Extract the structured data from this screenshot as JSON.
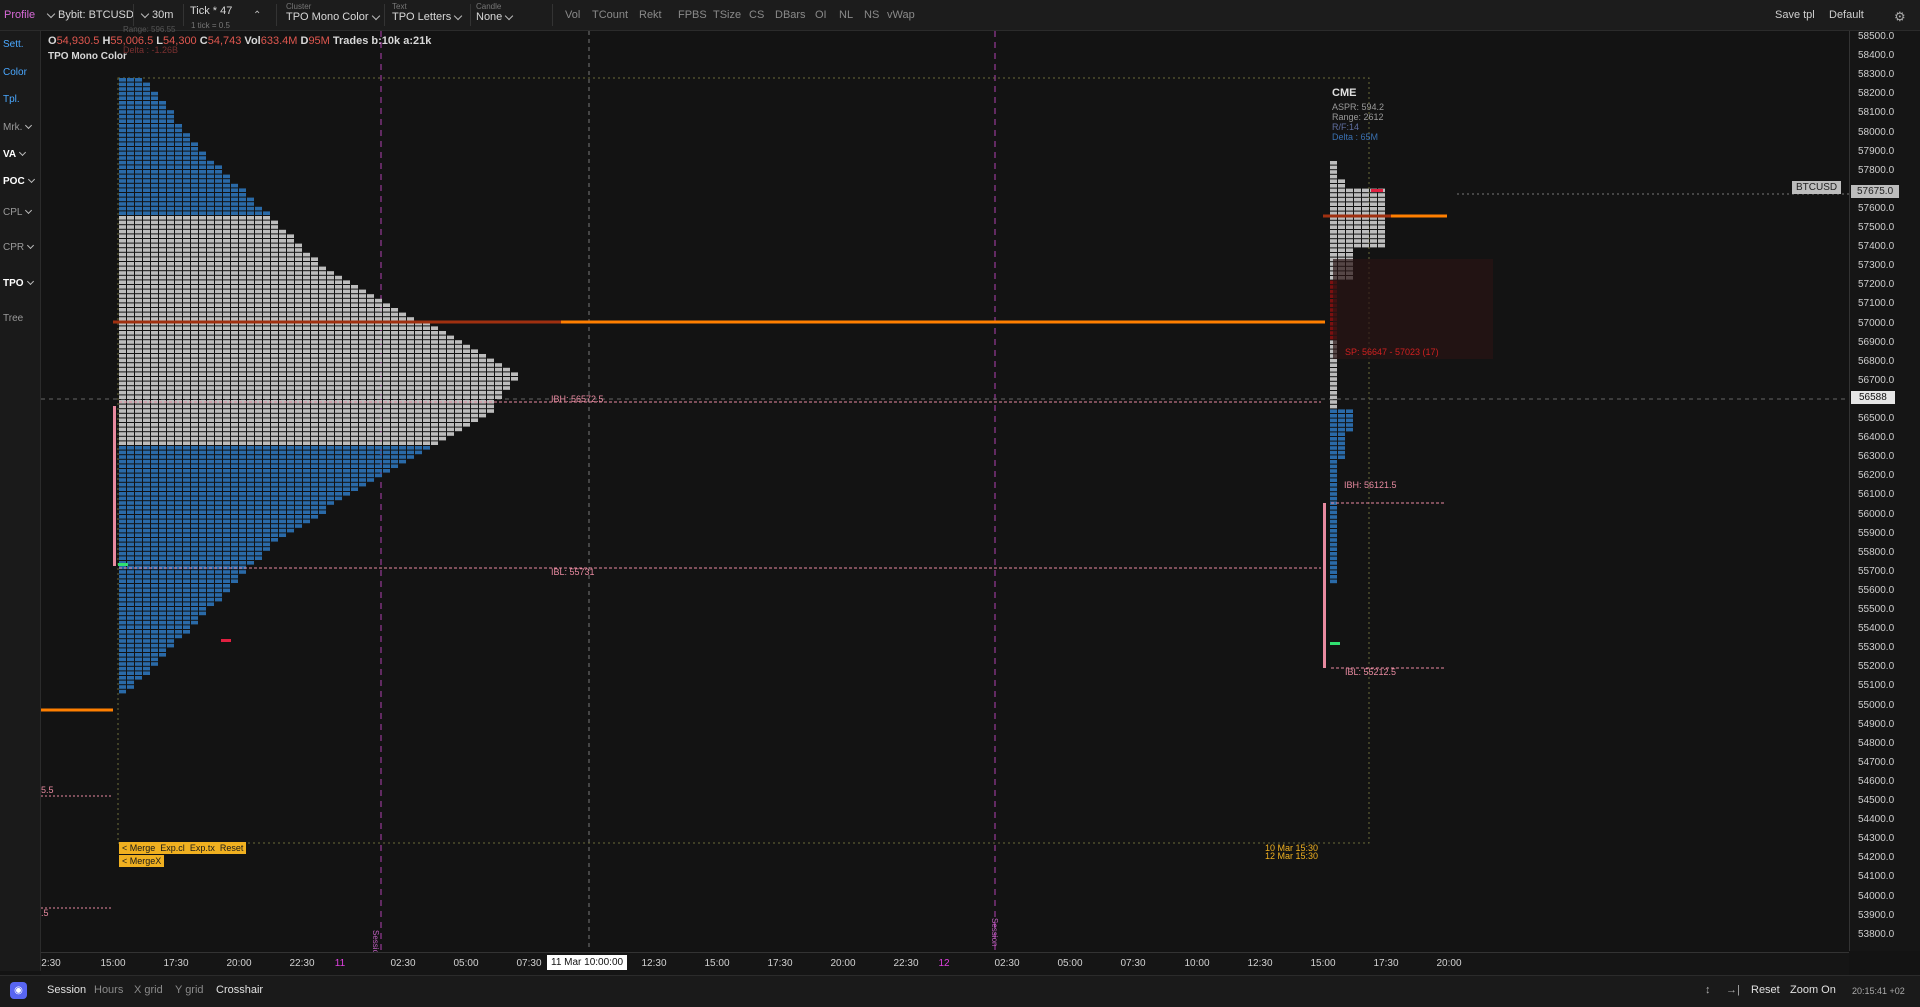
{
  "toolbar": {
    "profile": "Profile",
    "symbol": "Bybit: BTCUSD",
    "timeframe": "30m",
    "tick": "Tick * 47",
    "tick_sub": "1 tick = 0.5",
    "cluster_caption": "Cluster",
    "cluster_value": "TPO Mono Color",
    "text_caption": "Text",
    "text_value": "TPO Letters",
    "candle_caption": "Candle",
    "candle_value": "None",
    "buttons": [
      "Vol",
      "TCount",
      "Rekt",
      "FPBS",
      "TSize",
      "CS",
      "DBars",
      "OI",
      "NL",
      "NS",
      "vWap"
    ],
    "save_tpl": "Save tpl",
    "default": "Default",
    "range_overlay": "Range: 596.55",
    "delta_overlay": "Delta : -1.26B"
  },
  "sidebar": {
    "items": [
      {
        "label": "Sett.",
        "color": "#4aa8ff"
      },
      {
        "label": "Color",
        "color": "#4aa8ff"
      },
      {
        "label": "Tpl.",
        "color": "#4aa8ff"
      },
      {
        "label": "Mrk.",
        "color": "#9a9a9a"
      },
      {
        "label": "VA",
        "color": "#ffffff"
      },
      {
        "label": "POC",
        "color": "#ffffff"
      },
      {
        "label": "CPL",
        "color": "#9a9a9a"
      },
      {
        "label": "CPR",
        "color": "#9a9a9a"
      },
      {
        "label": "TPO",
        "color": "#ffffff"
      },
      {
        "label": "Tree",
        "color": "#9a9a9a"
      }
    ]
  },
  "ohlc": {
    "o_label": "O",
    "o_value": "54,930.5",
    "h_label": "H",
    "h_value": "55,006.5",
    "l_label": "L",
    "l_value": "54,300",
    "c_label": "C",
    "c_value": "54,743",
    "vol_label": "Vol",
    "vol_value": "633.4M",
    "d_label": "D",
    "d_value": "95M",
    "trades": "Trades b:10k a:21k",
    "subtitle": "TPO Mono Color"
  },
  "chart": {
    "price_ticks": [
      "58500.0",
      "58400.0",
      "58300.0",
      "58200.0",
      "58100.0",
      "58000.0",
      "57900.0",
      "57800.0",
      "57700.0",
      "57600.0",
      "57500.0",
      "57400.0",
      "57300.0",
      "57200.0",
      "57100.0",
      "57000.0",
      "56900.0",
      "56800.0",
      "56700.0",
      "56600.0",
      "56500.0",
      "56400.0",
      "56300.0",
      "56200.0",
      "56100.0",
      "56000.0",
      "55900.0",
      "55800.0",
      "55700.0",
      "55600.0",
      "55500.0",
      "55400.0",
      "55300.0",
      "55200.0",
      "55100.0",
      "55000.0",
      "54900.0",
      "54800.0",
      "54700.0",
      "54600.0",
      "54500.0",
      "54400.0",
      "54300.0",
      "54200.0",
      "54100.0",
      "54000.0",
      "53900.0",
      "53800.0"
    ],
    "time_ticks": [
      {
        "label": "2:30",
        "color": "#d2d2d2"
      },
      {
        "label": "15:00",
        "color": "#d2d2d2"
      },
      {
        "label": "17:30",
        "color": "#d2d2d2"
      },
      {
        "label": "20:00",
        "color": "#d2d2d2"
      },
      {
        "label": "22:30",
        "color": "#d2d2d2"
      },
      {
        "label": "11",
        "color": "#e040e0"
      },
      {
        "label": "02:30",
        "color": "#d2d2d2"
      },
      {
        "label": "05:00",
        "color": "#d2d2d2"
      },
      {
        "label": "07:30",
        "color": "#d2d2d2"
      },
      {
        "label": "12:30",
        "color": "#d2d2d2"
      },
      {
        "label": "15:00",
        "color": "#d2d2d2"
      },
      {
        "label": "17:30",
        "color": "#d2d2d2"
      },
      {
        "label": "20:00",
        "color": "#d2d2d2"
      },
      {
        "label": "22:30",
        "color": "#d2d2d2"
      },
      {
        "label": "12",
        "color": "#e040e0"
      },
      {
        "label": "02:30",
        "color": "#d2d2d2"
      },
      {
        "label": "05:00",
        "color": "#d2d2d2"
      },
      {
        "label": "07:30",
        "color": "#d2d2d2"
      },
      {
        "label": "10:00",
        "color": "#d2d2d2"
      },
      {
        "label": "12:30",
        "color": "#d2d2d2"
      },
      {
        "label": "15:00",
        "color": "#d2d2d2"
      },
      {
        "label": "17:30",
        "color": "#d2d2d2"
      },
      {
        "label": "20:00",
        "color": "#d2d2d2"
      }
    ],
    "crosshair_time": "11 Mar 10:00:00",
    "crosshair_price": "56588",
    "symbol_tag": "BTCUSD",
    "last_price": "57675.0",
    "labels": {
      "ibh1": "IBH: 56572.5",
      "ibl1": "IBL: 55731",
      "ibh2": "IBH: 56121.5",
      "ibl2": "IBL: 55212.5",
      "sp": "SP: 56647 - 57023 (17)",
      "left1": "5.5",
      "left2": ".5",
      "session1": "Session",
      "session2": "Session",
      "date_a": "10 Mar 15:30",
      "date_b": "12 Mar 15:30"
    },
    "cme": {
      "title": "CME",
      "aspr": "ASPR: 594.2",
      "range": "Range: 2612",
      "rf": "R/F:14",
      "delta": "Delta : 65M"
    },
    "merge_buttons": [
      "< Merge",
      "Exp.cl",
      "Exp.tx",
      "Reset"
    ],
    "mergex": "< MergeX",
    "colors": {
      "blue": "#2a6aa8",
      "grey": "#bdbdbd",
      "orange": "#ff7f00",
      "pink": "#e88aa0",
      "gold": "#f0b020"
    }
  },
  "bottom": {
    "left_items": [
      "Session",
      "Hours",
      "X grid",
      "Y grid",
      "Crosshair"
    ],
    "reset": "Reset",
    "zoom": "Zoom On",
    "clock": "20:15:41 +02"
  }
}
